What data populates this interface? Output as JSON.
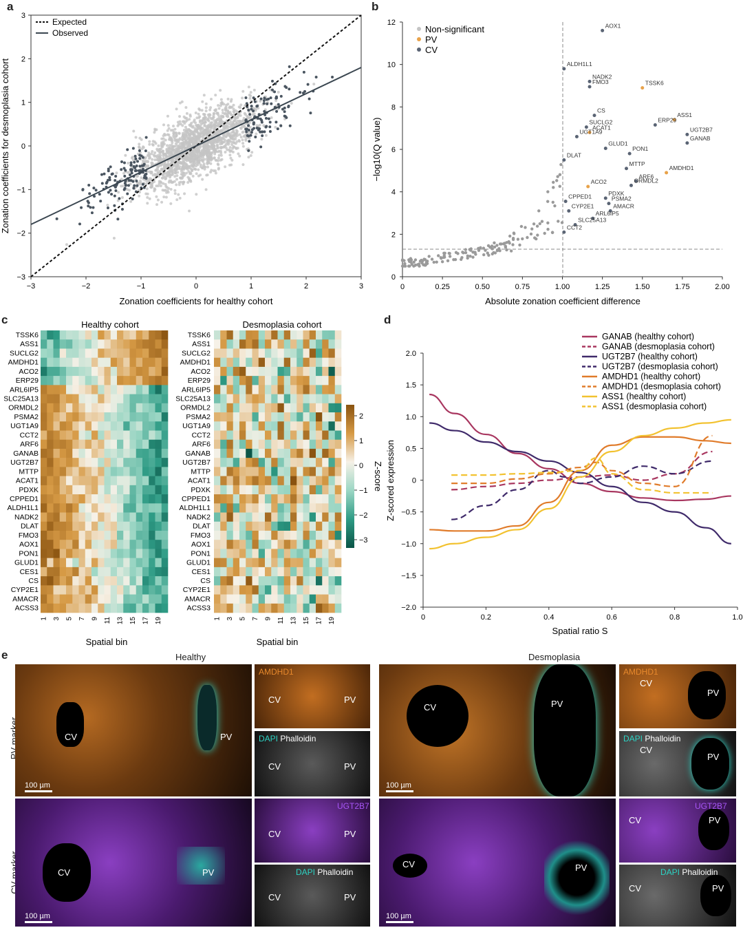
{
  "colors": {
    "grey_light": "#c4c4c4",
    "grey_dark": "#4a5560",
    "pv": "#e8a24a",
    "cv": "#5a6474",
    "heat_low": "#0c6e5a",
    "heat_mid": "#f6f1e7",
    "heat_high": "#b06c18"
  },
  "panel_labels": [
    "a",
    "b",
    "c",
    "d",
    "e"
  ],
  "panel_a": {
    "xlabel": "Zonation coefficients for healthy cohort",
    "ylabel": "Zonation coefficients for desmoplasia cohort",
    "xticks": [
      "−3",
      "−2",
      "−1",
      "0",
      "1",
      "2",
      "3"
    ],
    "yticks": [
      "3",
      "2",
      "1",
      "0",
      "−1",
      "−2",
      "−3"
    ],
    "legend": [
      "Expected",
      "Observed"
    ],
    "observed_fit": {
      "slope": 0.6,
      "intercept": 0.0
    }
  },
  "panel_b": {
    "xlabel": "Absolute zonation coefficient difference",
    "ylabel": "−log10(Q value)",
    "xticks": [
      "0",
      "0.25",
      "0.50",
      "0.75",
      "1.00",
      "1.25",
      "1.50",
      "1.75",
      "2.00"
    ],
    "yticks": [
      "0",
      "2",
      "4",
      "6",
      "8",
      "10",
      "12"
    ],
    "legend": [
      "Non-significant",
      "PV",
      "CV"
    ],
    "genes": [
      {
        "g": "AOX1",
        "x": 1.25,
        "y": 11.6,
        "c": "cv"
      },
      {
        "g": "ALDH1L1",
        "x": 1.01,
        "y": 9.8,
        "c": "cv"
      },
      {
        "g": "NADK2",
        "x": 1.17,
        "y": 9.2,
        "c": "cv"
      },
      {
        "g": "FMO3",
        "x": 1.17,
        "y": 8.95,
        "c": "cv"
      },
      {
        "g": "TSSK6",
        "x": 1.5,
        "y": 8.9,
        "c": "pv"
      },
      {
        "g": "CS",
        "x": 1.2,
        "y": 7.6,
        "c": "cv"
      },
      {
        "g": "ASS1",
        "x": 1.7,
        "y": 7.4,
        "c": "pv"
      },
      {
        "g": "ERP29",
        "x": 1.58,
        "y": 7.15,
        "c": "cv"
      },
      {
        "g": "SUCLG2",
        "x": 1.15,
        "y": 7.05,
        "c": "cv"
      },
      {
        "g": "ACAT1",
        "x": 1.17,
        "y": 6.8,
        "c": "pv"
      },
      {
        "g": "UGT2B7",
        "x": 1.78,
        "y": 6.7,
        "c": "cv"
      },
      {
        "g": "UGT1A9",
        "x": 1.09,
        "y": 6.6,
        "c": "cv"
      },
      {
        "g": "GANAB",
        "x": 1.78,
        "y": 6.3,
        "c": "cv"
      },
      {
        "g": "GLUD1",
        "x": 1.27,
        "y": 6.05,
        "c": "cv"
      },
      {
        "g": "PON1",
        "x": 1.42,
        "y": 5.8,
        "c": "cv"
      },
      {
        "g": "DLAT",
        "x": 1.01,
        "y": 5.5,
        "c": "cv"
      },
      {
        "g": "MTTP",
        "x": 1.4,
        "y": 5.1,
        "c": "cv"
      },
      {
        "g": "AMDHD1",
        "x": 1.65,
        "y": 4.9,
        "c": "pv"
      },
      {
        "g": "ARF6",
        "x": 1.46,
        "y": 4.5,
        "c": "cv"
      },
      {
        "g": "ACO2",
        "x": 1.16,
        "y": 4.25,
        "c": "pv"
      },
      {
        "g": "ORMDL2",
        "x": 1.43,
        "y": 4.3,
        "c": "cv"
      },
      {
        "g": "PDXK",
        "x": 1.27,
        "y": 3.7,
        "c": "cv"
      },
      {
        "g": "CPPED1",
        "x": 1.02,
        "y": 3.55,
        "c": "cv"
      },
      {
        "g": "PSMA2",
        "x": 1.29,
        "y": 3.45,
        "c": "cv"
      },
      {
        "g": "CYP2E1",
        "x": 1.04,
        "y": 3.1,
        "c": "cv"
      },
      {
        "g": "AMACR",
        "x": 1.3,
        "y": 3.1,
        "c": "cv"
      },
      {
        "g": "ARL6IP5",
        "x": 1.19,
        "y": 2.75,
        "c": "cv"
      },
      {
        "g": "SLC25A13",
        "x": 1.08,
        "y": 2.45,
        "c": "cv"
      },
      {
        "g": "CCT2",
        "x": 1.01,
        "y": 2.1,
        "c": "cv"
      }
    ]
  },
  "panel_c": {
    "titles": [
      "Healthy cohort",
      "Desmoplasia cohort"
    ],
    "xlabel": "Spatial bin",
    "xticks": [
      "1",
      "3",
      "5",
      "7",
      "9",
      "11",
      "13",
      "15",
      "17",
      "19"
    ],
    "genes": [
      "TSSK6",
      "ASS1",
      "SUCLG2",
      "AMDHD1",
      "ACO2",
      "ERP29",
      "ARL6IP5",
      "SLC25A13",
      "ORMDL2",
      "PSMA2",
      "UGT1A9",
      "CCT2",
      "ARF6",
      "GANAB",
      "UGT2B7",
      "MTTP",
      "ACAT1",
      "PDXK",
      "CPPED1",
      "ALDH1L1",
      "NADK2",
      "DLAT",
      "FMO3",
      "AOX1",
      "PON1",
      "GLUD1",
      "CES1",
      "CS",
      "CYP2E1",
      "AMACR",
      "ACSS3"
    ],
    "colorbar": {
      "label": "Z-score",
      "ticks": [
        "2",
        "1",
        "0",
        "−1",
        "−2",
        "−3"
      ]
    }
  },
  "panel_d": {
    "xlabel": "Spatial ratio S",
    "ylabel": "Z-scored expression",
    "xticks": [
      "0",
      "0.2",
      "0.4",
      "0.6",
      "0.8",
      "1.0"
    ],
    "yticks": [
      "2.0",
      "1.5",
      "1.0",
      "0.5",
      "0",
      "−0.5",
      "−1.0",
      "−1.5",
      "−2.0"
    ],
    "ylim": [
      -2,
      2
    ],
    "xlim": [
      0,
      1
    ],
    "series": [
      {
        "name": "GANAB (healthy cohort)",
        "color": "#a8365f",
        "dash": false,
        "x": [
          0.02,
          0.1,
          0.2,
          0.3,
          0.4,
          0.5,
          0.6,
          0.7,
          0.8,
          0.9,
          0.98
        ],
        "y": [
          1.35,
          1.05,
          0.72,
          0.42,
          0.18,
          -0.05,
          -0.18,
          -0.28,
          -0.32,
          -0.3,
          -0.25
        ]
      },
      {
        "name": "GANAB (desmoplasia cohort)",
        "color": "#a8365f",
        "dash": true,
        "x": [
          0.09,
          0.2,
          0.3,
          0.4,
          0.5,
          0.6,
          0.7,
          0.8,
          0.92
        ],
        "y": [
          -0.15,
          -0.1,
          -0.05,
          0.0,
          0.05,
          0.08,
          0.0,
          0.1,
          0.45
        ]
      },
      {
        "name": "UGT2B7 (healthy cohort)",
        "color": "#3f2a6a",
        "dash": false,
        "x": [
          0.02,
          0.1,
          0.2,
          0.3,
          0.4,
          0.5,
          0.6,
          0.7,
          0.8,
          0.9,
          0.98
        ],
        "y": [
          0.9,
          0.78,
          0.6,
          0.45,
          0.3,
          0.12,
          -0.1,
          -0.35,
          -0.5,
          -0.75,
          -1.0
        ]
      },
      {
        "name": "UGT2B7 (desmoplasia cohort)",
        "color": "#3f2a6a",
        "dash": true,
        "x": [
          0.09,
          0.2,
          0.3,
          0.4,
          0.45,
          0.5,
          0.6,
          0.7,
          0.8,
          0.92
        ],
        "y": [
          -0.62,
          -0.4,
          -0.15,
          0.15,
          0.05,
          -0.05,
          0.05,
          0.22,
          0.1,
          0.3
        ]
      },
      {
        "name": "AMDHD1 (healthy cohort)",
        "color": "#e07b2a",
        "dash": false,
        "x": [
          0.02,
          0.1,
          0.2,
          0.3,
          0.4,
          0.5,
          0.6,
          0.7,
          0.8,
          0.9,
          0.98
        ],
        "y": [
          -0.78,
          -0.8,
          -0.8,
          -0.72,
          -0.35,
          0.15,
          0.55,
          0.68,
          0.68,
          0.62,
          0.58
        ]
      },
      {
        "name": "AMDHD1 (desmoplasia cohort)",
        "color": "#e07b2a",
        "dash": true,
        "x": [
          0.09,
          0.2,
          0.3,
          0.4,
          0.5,
          0.55,
          0.6,
          0.7,
          0.8,
          0.92
        ],
        "y": [
          -0.05,
          -0.05,
          0.02,
          0.1,
          0.2,
          0.28,
          0.15,
          -0.05,
          -0.1,
          0.7
        ]
      },
      {
        "name": "ASS1 (healthy cohort)",
        "color": "#f2c230",
        "dash": false,
        "x": [
          0.02,
          0.1,
          0.2,
          0.3,
          0.4,
          0.5,
          0.6,
          0.7,
          0.8,
          0.9,
          0.98
        ],
        "y": [
          -1.08,
          -1.0,
          -0.9,
          -0.78,
          -0.45,
          0.05,
          0.45,
          0.7,
          0.82,
          0.9,
          0.95
        ]
      },
      {
        "name": "ASS1 (desmoplasia cohort)",
        "color": "#f2c230",
        "dash": true,
        "x": [
          0.09,
          0.2,
          0.3,
          0.4,
          0.5,
          0.55,
          0.6,
          0.7,
          0.8,
          0.92
        ],
        "y": [
          0.08,
          0.08,
          0.1,
          0.12,
          0.15,
          0.35,
          0.1,
          -0.15,
          -0.2,
          -0.2
        ]
      }
    ]
  },
  "panel_e": {
    "titles": [
      "Healthy",
      "Desmoplasia"
    ],
    "rows": [
      "PV marker",
      "CV marker"
    ],
    "scale": "100 µm",
    "markers": {
      "pv": "AMDHD1",
      "cv": "UGT2B7"
    },
    "dapi": "DAPI",
    "phalloidin": "Phalloidin",
    "labels": {
      "cv": "CV",
      "pv": "PV"
    }
  }
}
